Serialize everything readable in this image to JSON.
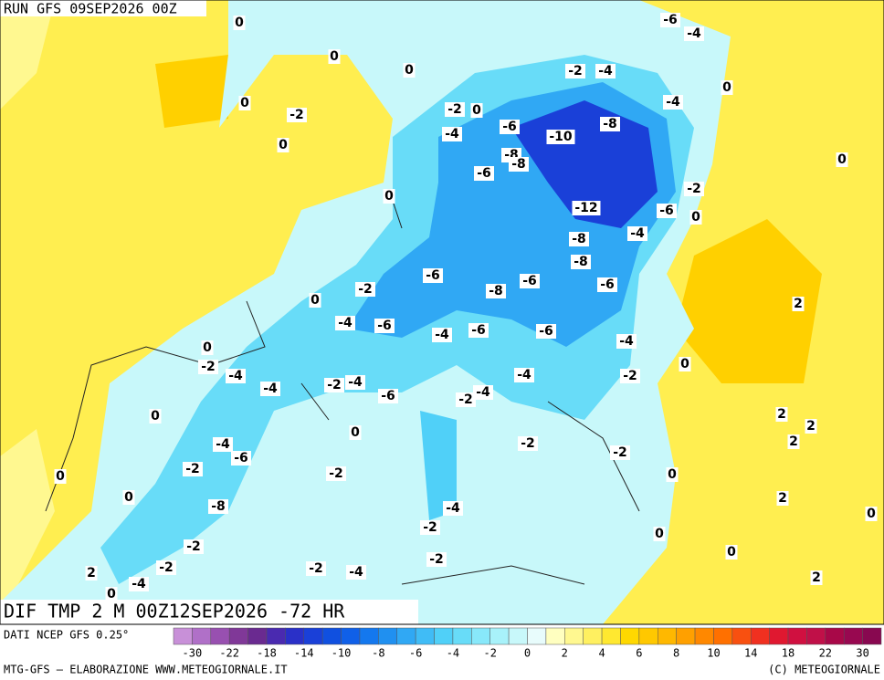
{
  "header": {
    "run": "RUN GFS 09SEP2026 00Z"
  },
  "map": {
    "title": "DIF TMP 2 M 00Z12SEP2026 -72 HR",
    "contour_labels": [
      0,
      -6,
      -4,
      0,
      0,
      -2,
      -4,
      0,
      0,
      -2,
      -2,
      0,
      -4,
      -6,
      -8,
      -10,
      -4,
      0,
      -8,
      -8,
      0,
      -6,
      -2,
      0,
      -12,
      -6,
      0,
      -4,
      -8,
      -8,
      -6,
      -6,
      -2,
      -8,
      -6,
      0,
      2,
      -4,
      -6,
      -4,
      -6,
      -6,
      -4,
      0,
      -2,
      -4,
      0,
      -4,
      -2,
      -4,
      -2,
      -4,
      -6,
      -2,
      -4,
      0,
      2,
      2,
      0,
      -4,
      -6,
      -2,
      -2,
      2,
      -2,
      0,
      -2,
      0,
      0,
      2,
      -8,
      -4,
      -2,
      0,
      0,
      -2,
      0,
      -2,
      2,
      -2,
      -2,
      -4,
      2,
      -4,
      0
    ]
  },
  "footer": {
    "source": "DATI NCEP GFS 0.25°",
    "credit_left": "MTG-GFS — ELABORAZIONE WWW.METEOGIORNALE.IT",
    "credit_right": "(C) METEOGIORNALE"
  },
  "colorbar": {
    "colors": [
      "#c890d8",
      "#b070c8",
      "#9850b0",
      "#803898",
      "#6a2a90",
      "#4a2ab0",
      "#2a30c8",
      "#1a40d8",
      "#1050e0",
      "#1060e8",
      "#1478ee",
      "#2090f0",
      "#30a8f4",
      "#40bcf6",
      "#50d0f8",
      "#68dcf8",
      "#88e8fa",
      "#a8f2fa",
      "#c8f8fa",
      "#e8fcfc",
      "#ffffc0",
      "#fff890",
      "#fff060",
      "#ffe830",
      "#ffd800",
      "#ffc800",
      "#ffb800",
      "#ffa000",
      "#ff8800",
      "#ff7000",
      "#f85010",
      "#f03020",
      "#e01830",
      "#d01040",
      "#c01048",
      "#a80848",
      "#980850",
      "#880850"
    ],
    "ticks": [
      -30,
      -22,
      -18,
      -14,
      -10,
      -8,
      -6,
      -4,
      -2,
      0,
      2,
      4,
      6,
      8,
      10,
      14,
      18,
      22,
      30
    ]
  }
}
